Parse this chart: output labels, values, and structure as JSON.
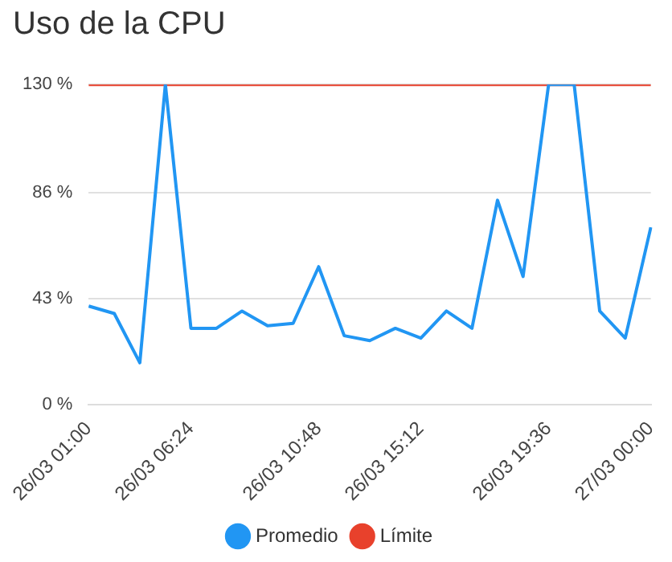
{
  "chart_data": {
    "type": "line",
    "title": "Uso de la CPU",
    "categories": [
      "26/03 01:00",
      null,
      null,
      null,
      "26/03 06:24",
      null,
      null,
      null,
      null,
      "26/03 10:48",
      null,
      null,
      null,
      "26/03 15:12",
      null,
      null,
      null,
      null,
      "26/03 19:36",
      null,
      null,
      null,
      "27/03 00:00"
    ],
    "series": [
      {
        "name": "Promedio",
        "color": "#2196f3",
        "values": [
          40,
          37,
          17,
          130,
          31,
          31,
          38,
          32,
          33,
          56,
          28,
          26,
          31,
          27,
          38,
          31,
          83,
          52,
          130,
          130,
          38,
          27,
          72
        ]
      },
      {
        "name": "Límite",
        "color": "#e8412c",
        "values": [
          130,
          130,
          130,
          130,
          130,
          130,
          130,
          130,
          130,
          130,
          130,
          130,
          130,
          130,
          130,
          130,
          130,
          130,
          130,
          130,
          130,
          130,
          130
        ]
      }
    ],
    "ylim": [
      0,
      130
    ],
    "yticks": [
      {
        "value": 0,
        "label": "0 %"
      },
      {
        "value": 43,
        "label": "43 %"
      },
      {
        "value": 86,
        "label": "86 %"
      },
      {
        "value": 130,
        "label": "130 %"
      }
    ],
    "grid": "y",
    "legend": "bottom",
    "marker": "none",
    "line_style": "solid"
  }
}
